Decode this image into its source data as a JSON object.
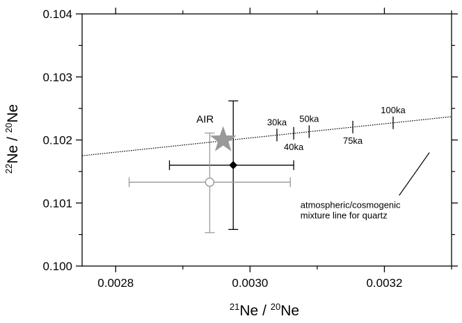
{
  "chart_data": {
    "type": "scatter",
    "title": "",
    "xlabel": {
      "sup1": "21",
      "base1": "Ne / ",
      "sup2": "20",
      "base2": "Ne"
    },
    "ylabel": {
      "sup1": "22",
      "base1": "Ne / ",
      "sup2": "20",
      "base2": "Ne"
    },
    "xlim": [
      0.00275,
      0.0033
    ],
    "ylim": [
      0.1,
      0.104
    ],
    "x_ticks": [
      0.0028,
      0.003,
      0.0032
    ],
    "x_tick_labels": [
      "0.0028",
      "0.0030",
      "0.0032"
    ],
    "y_ticks": [
      0.1,
      0.101,
      0.102,
      0.103,
      0.104
    ],
    "y_tick_labels": [
      "0.100",
      "0.101",
      "0.102",
      "0.103",
      "0.104"
    ],
    "grid": false,
    "air": {
      "label": "AIR",
      "x": 0.00296,
      "y": 0.102,
      "color": "#999999"
    },
    "points": [
      {
        "marker": "diamond",
        "color": "#000000",
        "x": 0.002975,
        "y": 0.1016,
        "x_err": [
          0.00288,
          0.003065
        ],
        "y_err": [
          0.10058,
          0.10262
        ]
      },
      {
        "marker": "open-circle",
        "color": "#999999",
        "x": 0.00294,
        "y": 0.10133,
        "x_err": [
          0.00282,
          0.00306
        ],
        "y_err": [
          0.10053,
          0.10211
        ]
      }
    ],
    "mixture_line": {
      "x": [
        0.00275,
        0.0033
      ],
      "y": [
        0.10175,
        0.10237
      ],
      "label_lines": [
        "atmospheric/cosmogenic",
        "mixture line for quartz"
      ]
    },
    "age_ticks": [
      {
        "label": "30ka",
        "x": 0.00304,
        "y": 0.102078,
        "label_pos": "above"
      },
      {
        "label": "40ka",
        "x": 0.003065,
        "y": 0.102106,
        "label_pos": "below"
      },
      {
        "label": "50ka",
        "x": 0.003088,
        "y": 0.102132,
        "label_pos": "above"
      },
      {
        "label": "75ka",
        "x": 0.003153,
        "y": 0.102205,
        "label_pos": "below"
      },
      {
        "label": "100ka",
        "x": 0.003213,
        "y": 0.102272,
        "label_pos": "above"
      }
    ]
  }
}
